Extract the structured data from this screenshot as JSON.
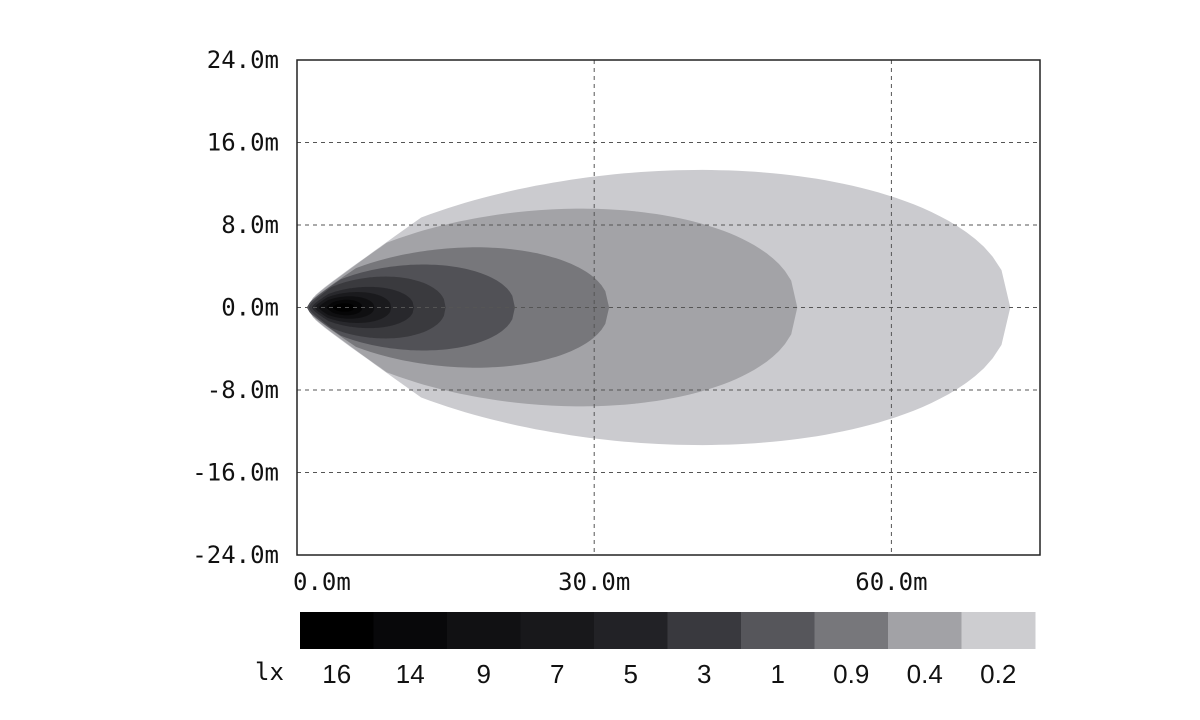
{
  "chart_data": {
    "type": "heatmap",
    "title": "",
    "xlabel": "",
    "ylabel": "",
    "xlim": [
      0,
      75
    ],
    "ylim": [
      -24,
      24
    ],
    "x_ticks": [
      {
        "value": 0,
        "label": "0.0m"
      },
      {
        "value": 30,
        "label": "30.0m"
      },
      {
        "value": 60,
        "label": "60.0m"
      }
    ],
    "y_ticks": [
      {
        "value": 24,
        "label": "24.0m"
      },
      {
        "value": 16,
        "label": "16.0m"
      },
      {
        "value": 8,
        "label": "8.0m"
      },
      {
        "value": 0,
        "label": "0.0m"
      },
      {
        "value": -8,
        "label": "-8.0m"
      },
      {
        "value": -16,
        "label": "-16.0m"
      },
      {
        "value": -24,
        "label": "-24.0m"
      }
    ],
    "grid": true,
    "contours": [
      {
        "lux": "0.2",
        "color": "#cbcbcf",
        "x_start": 1.0,
        "x_end": 72.0,
        "half_width": 16.0,
        "shape": 1.3
      },
      {
        "lux": "0.4",
        "color": "#a3a3a7",
        "x_start": 1.0,
        "x_end": 50.5,
        "half_width": 11.5,
        "shape": 1.2
      },
      {
        "lux": "0.9",
        "color": "#77777b",
        "x_start": 1.0,
        "x_end": 31.5,
        "half_width": 7.0,
        "shape": 1.1
      },
      {
        "lux": "1",
        "color": "#515156",
        "x_start": 1.0,
        "x_end": 22.0,
        "half_width": 5.0,
        "shape": 1.0
      },
      {
        "lux": "3",
        "color": "#3a3a3e",
        "x_start": 1.2,
        "x_end": 15.0,
        "half_width": 3.6,
        "shape": 1.0
      },
      {
        "lux": "5",
        "color": "#28282c",
        "x_start": 1.5,
        "x_end": 11.8,
        "half_width": 2.4,
        "shape": 0.9
      },
      {
        "lux": "7",
        "color": "#1a1a1d",
        "x_start": 1.8,
        "x_end": 9.5,
        "half_width": 1.8,
        "shape": 0.9
      },
      {
        "lux": "9",
        "color": "#0f0f11",
        "x_start": 2.2,
        "x_end": 7.8,
        "half_width": 1.3,
        "shape": 0.9
      },
      {
        "lux": "14",
        "color": "#060607",
        "x_start": 3.0,
        "x_end": 6.6,
        "half_width": 0.9,
        "shape": 0.9
      },
      {
        "lux": "16",
        "color": "#000000",
        "x_start": 3.6,
        "x_end": 5.8,
        "half_width": 0.5,
        "shape": 0.9
      }
    ],
    "scale": {
      "unit": "lx",
      "entries": [
        {
          "label": "16",
          "color": "#000000"
        },
        {
          "label": "14",
          "color": "#08080a"
        },
        {
          "label": "9",
          "color": "#111113"
        },
        {
          "label": "7",
          "color": "#18181b"
        },
        {
          "label": "5",
          "color": "#222226"
        },
        {
          "label": "3",
          "color": "#39393e"
        },
        {
          "label": "1",
          "color": "#56565b"
        },
        {
          "label": "0.9",
          "color": "#77777b"
        },
        {
          "label": "0.4",
          "color": "#a2a2a6"
        },
        {
          "label": "0.2",
          "color": "#cdcdd0"
        }
      ]
    }
  }
}
